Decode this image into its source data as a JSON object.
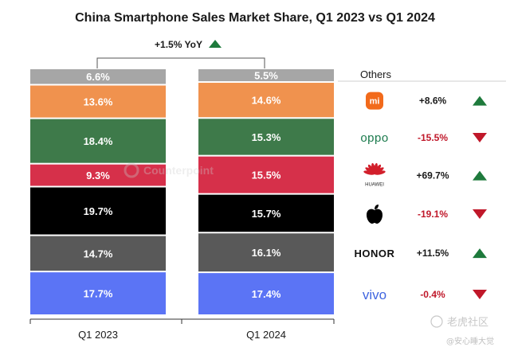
{
  "chart_data": {
    "type": "bar",
    "stacked": true,
    "title": "China Smartphone Sales Market Share, Q1 2023 vs Q1 2024",
    "categories": [
      "Q1 2023",
      "Q1 2024"
    ],
    "series": [
      {
        "name": "vivo",
        "values": [
          17.7,
          17.4
        ],
        "labels": [
          "17.7%",
          "17.4%"
        ],
        "color": "#5b74f5"
      },
      {
        "name": "HONOR",
        "values": [
          14.7,
          16.1
        ],
        "labels": [
          "14.7%",
          "16.1%"
        ],
        "color": "#595959"
      },
      {
        "name": "Apple",
        "values": [
          19.7,
          15.7
        ],
        "labels": [
          "19.7%",
          "15.7%"
        ],
        "color": "#000000"
      },
      {
        "name": "HUAWEI",
        "values": [
          9.3,
          15.5
        ],
        "labels": [
          "9.3%",
          "15.5%"
        ],
        "color": "#d6304a"
      },
      {
        "name": "OPPO",
        "values": [
          18.4,
          15.3
        ],
        "labels": [
          "18.4%",
          "15.3%"
        ],
        "color": "#3e7a4a"
      },
      {
        "name": "Xiaomi",
        "values": [
          13.6,
          14.6
        ],
        "labels": [
          "13.6%",
          "14.6%"
        ],
        "color": "#f0924e"
      },
      {
        "name": "Others",
        "values": [
          6.6,
          5.5
        ],
        "labels": [
          "6.6%",
          "5.5%"
        ],
        "color": "#a6a6a6"
      }
    ],
    "ylim": [
      0,
      100
    ],
    "grid": false,
    "yoy_annotation": {
      "text": "+1.5% YoY",
      "direction": "up"
    },
    "brand_changes": [
      {
        "brand": "Xiaomi",
        "logo_text": "mi",
        "change": "+8.6%",
        "direction": "up"
      },
      {
        "brand": "OPPO",
        "logo_text": "oppo",
        "change": "-15.5%",
        "direction": "down"
      },
      {
        "brand": "HUAWEI",
        "logo_text": "HUAWEI",
        "change": "+69.7%",
        "direction": "up"
      },
      {
        "brand": "Apple",
        "logo_text": "",
        "change": "-19.1%",
        "direction": "down"
      },
      {
        "brand": "HONOR",
        "logo_text": "HONOR",
        "change": "+11.5%",
        "direction": "up"
      },
      {
        "brand": "vivo",
        "logo_text": "vivo",
        "change": "-0.4%",
        "direction": "down"
      }
    ],
    "others_label": "Others"
  },
  "colors": {
    "up": "#1e7a3c",
    "down": "#c0182a",
    "up_text": "#1a1a1a",
    "down_text": "#c0182a"
  },
  "watermark": {
    "text": "Counterpoint",
    "source": "老虎社区",
    "author": "@安心睡大觉"
  }
}
